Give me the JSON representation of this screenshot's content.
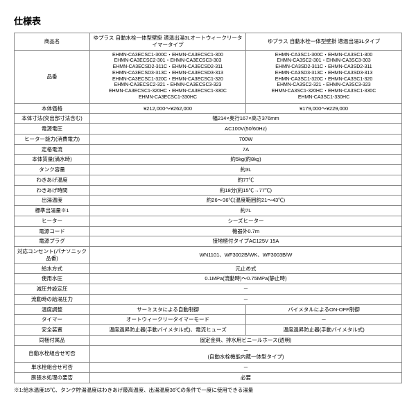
{
  "title": "仕様表",
  "headers": {
    "product_name": "商品名",
    "col1": "ゆプラス 自動水栓一体型壁掛 適温出湯3Lオートウィークリータイマータイプ",
    "col2": "ゆプラス 自動水栓一体型壁掛 適温出湯3Lタイプ"
  },
  "part_label": "品番",
  "codes1": "EHMN-CA3ECSC1-300C・EHMN-CA3ECSC1-300\nEHMN-CA3ECSC2-301・EHMN-CA3ECSC3-303\nEHMN-CA3ECSD2-311C・EHMN-CA3ECSD2-311\nEHMN-CA3ECSD3-313C・EHMN-CA3ECSD3-313\nEHMN-CA3ECSC1-320C・EHMN-CA3ECSC1-320\nEHMN-CA3ECSC2-321・EHMN-CA3ECSC3-323\nEHMN-CA3ECSC1-320HC・EHMN-CA3ECSC1-330C\nEHMN-CA3ECSC1-330HC",
  "codes2": "EHMN-CA3SC1-300C・EHMN-CA3SC1-300\nEHMN-CA3SC2-301・EHMN-CA3SC3-303\nEHMN-CA3SD2-311C・EHMN-CA3SD2-311\nEHMN-CA3SD3-313C・EHMN-CA3SD3-313\nEHMN-CA3SC1-320C・EHMN-CA3SC1-320\nEHMN-CA3SC2-321・EHMN-CA3SC3-323\nEHMN-CA3SC1-320HC・EHMN-CA3SC1-330C\nEHMN-CA3SC1-330HC",
  "rows": [
    {
      "label": "本体価格",
      "v1": "¥212,000～¥262,000",
      "v2": "¥179,000～¥229,000"
    },
    {
      "label": "本体寸法(突出部寸法含む)",
      "v": "幅214×奥行167×高さ376mm"
    },
    {
      "label": "電源電圧",
      "v": "AC100V(50/60Hz)"
    },
    {
      "label": "ヒーター能力(消費電力)",
      "v": "700W"
    },
    {
      "label": "定格電流",
      "v": "7A"
    },
    {
      "label": "本体質量(満水時)",
      "v": "約5kg(約8kg)"
    },
    {
      "label": "タンク容量",
      "v": "約3L"
    },
    {
      "label": "わきあげ温度",
      "v": "約77℃"
    },
    {
      "label": "わきあげ時間",
      "v": "約18分(約15℃→77℃)"
    },
    {
      "label": "出湯温度",
      "v": "約26～36℃(温度範囲約21～43℃)"
    },
    {
      "label": "標準出湯量※1",
      "v": "約7L"
    },
    {
      "label": "ヒーター",
      "v": "シーズヒーター"
    },
    {
      "label": "電源コード",
      "v": "機器外0.7m"
    },
    {
      "label": "電源プラグ",
      "v": "接地極付タイプAC125V 15A"
    },
    {
      "label": "対応コンセント(パナソニック品番)",
      "v": "WN1101、WF3002B/WK、WF3003B/W"
    },
    {
      "label": "給水方式",
      "v": "元止め式"
    },
    {
      "label": "使用水圧",
      "v": "0.1MPa(流動時)～0.75MPa(静止時)"
    },
    {
      "label": "減圧弁設定圧",
      "v": "－"
    },
    {
      "label": "流動時の給湯圧力",
      "v": "－"
    },
    {
      "label": "温度調整",
      "v1": "サーミスタによる自動制御",
      "v2": "バイメタルによるON-OFF制御"
    },
    {
      "label": "タイマー",
      "v1": "オートウィークリータイマーモード",
      "v2": "－"
    },
    {
      "label": "安全装置",
      "v1": "温度過昇防止器(手動バイメタル式)、電流ヒューズ",
      "v2": "温度過昇防止器(手動バイメタル式)"
    },
    {
      "label": "同梱付属品",
      "v": "固定金具、排水用ビニールホース(透明)"
    },
    {
      "label": "自動水栓組合せ可否",
      "v": "－\n(自動水栓機能内蔵一体型タイプ)"
    },
    {
      "label": "単水栓組合せ可否",
      "v": "－"
    },
    {
      "label": "膨張水処理の要否",
      "v": "必要"
    }
  ],
  "footnote": "※1:給水温度15℃、タンク貯湯温度はわきあげ最高温度、出湯温度36℃の条件で一度に使用できる湯量"
}
